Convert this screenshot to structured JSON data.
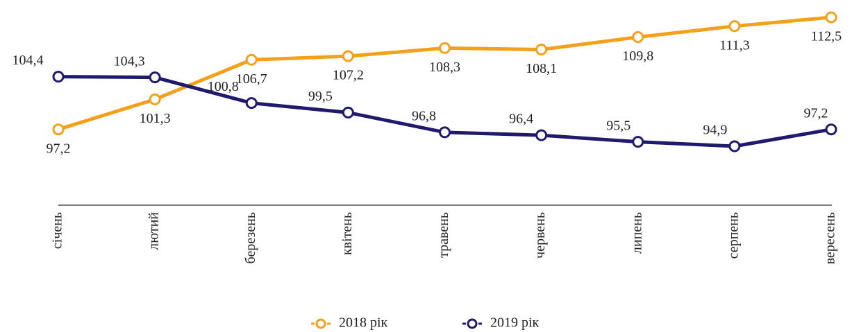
{
  "chart_data": {
    "type": "line",
    "categories": [
      "січень",
      "лютий",
      "березень",
      "квітень",
      "травень",
      "червень",
      "липень",
      "серпень",
      "вересень"
    ],
    "series": [
      {
        "name": "2018 рік",
        "color": "#f5a01a",
        "values": [
          97.2,
          101.3,
          106.7,
          107.2,
          108.3,
          108.1,
          109.8,
          111.3,
          112.5
        ],
        "value_labels": [
          "97,2",
          "101,3",
          "106,7",
          "107,2",
          "108,3",
          "108,1",
          "109,8",
          "111,3",
          "112,5"
        ]
      },
      {
        "name": "2019 рік",
        "color": "#1f1a6e",
        "values": [
          104.4,
          104.3,
          100.8,
          99.5,
          96.8,
          96.4,
          95.5,
          94.9,
          97.2
        ],
        "value_labels": [
          "104,4",
          "104,3",
          "100,8",
          "99,5",
          "96,8",
          "96,4",
          "95,5",
          "94,9",
          "97,2"
        ]
      }
    ],
    "legend": "bottom"
  }
}
